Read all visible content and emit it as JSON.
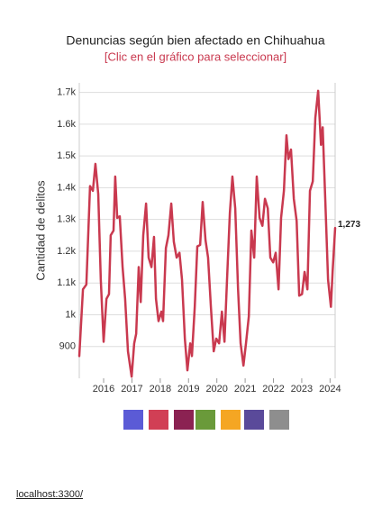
{
  "chart_data": {
    "type": "line",
    "title": "Denuncias según bien afectado en Chihuahua",
    "subtitle": "[Clic en el gráfico para seleccionar]",
    "y_label": "Cantidad de delitos",
    "x": [
      2015.14,
      2015.27,
      2015.39,
      2015.52,
      2015.62,
      2015.71,
      2015.81,
      2015.9,
      2016.0,
      2016.1,
      2016.19,
      2016.25,
      2016.35,
      2016.41,
      2016.48,
      2016.57,
      2016.67,
      2016.76,
      2016.86,
      2016.99,
      2017.08,
      2017.15,
      2017.24,
      2017.31,
      2017.4,
      2017.5,
      2017.59,
      2017.69,
      2017.78,
      2017.85,
      2017.94,
      2018.04,
      2018.1,
      2018.2,
      2018.29,
      2018.39,
      2018.48,
      2018.58,
      2018.68,
      2018.77,
      2018.87,
      2018.96,
      2019.06,
      2019.12,
      2019.22,
      2019.31,
      2019.41,
      2019.5,
      2019.6,
      2019.69,
      2019.79,
      2019.89,
      2019.98,
      2020.08,
      2020.18,
      2020.27,
      2020.36,
      2020.46,
      2020.55,
      2020.65,
      2020.75,
      2020.84,
      2020.94,
      2021.03,
      2021.13,
      2021.22,
      2021.32,
      2021.41,
      2021.51,
      2021.61,
      2021.7,
      2021.8,
      2021.89,
      2021.99,
      2022.08,
      2022.18,
      2022.27,
      2022.37,
      2022.46,
      2022.53,
      2022.62,
      2022.72,
      2022.82,
      2022.91,
      2023.01,
      2023.1,
      2023.2,
      2023.29,
      2023.39,
      2023.48,
      2023.58,
      2023.68,
      2023.74,
      2023.83,
      2023.93,
      2024.03,
      2024.09,
      2024.18
    ],
    "series": [
      {
        "name": "Cantidad de delitos",
        "color": "#c9394f",
        "values": [
          870,
          1080,
          1095,
          1405,
          1390,
          1475,
          1380,
          1110,
          915,
          1050,
          1065,
          1250,
          1265,
          1435,
          1305,
          1310,
          1150,
          1050,
          885,
          805,
          910,
          940,
          1150,
          1040,
          1250,
          1350,
          1180,
          1150,
          1245,
          1050,
          980,
          1010,
          980,
          1210,
          1250,
          1350,
          1230,
          1180,
          1195,
          1110,
          925,
          825,
          910,
          870,
          1025,
          1215,
          1220,
          1355,
          1235,
          1180,
          1025,
          885,
          925,
          910,
          1010,
          915,
          1110,
          1320,
          1435,
          1335,
          1080,
          910,
          840,
          910,
          995,
          1265,
          1180,
          1435,
          1305,
          1280,
          1365,
          1335,
          1180,
          1165,
          1195,
          1080,
          1305,
          1390,
          1565,
          1490,
          1520,
          1365,
          1295,
          1060,
          1065,
          1135,
          1080,
          1390,
          1420,
          1620,
          1705,
          1535,
          1590,
          1365,
          1110,
          1025,
          1135,
          1273
        ],
        "value_labels": [
          null,
          null,
          null,
          null,
          null,
          null,
          null,
          null,
          null,
          null,
          null,
          null,
          null,
          null,
          null,
          null,
          null,
          null,
          null,
          null,
          null,
          null,
          null,
          null,
          null,
          null,
          null,
          null,
          null,
          null,
          null,
          null,
          null,
          null,
          null,
          null,
          null,
          null,
          null,
          null,
          null,
          null,
          null,
          null,
          null,
          null,
          null,
          null,
          null,
          null,
          null,
          null,
          null,
          null,
          null,
          null,
          null,
          null,
          null,
          null,
          null,
          null,
          null,
          null,
          null,
          null,
          null,
          null,
          null,
          null,
          null,
          null,
          null,
          null,
          null,
          null,
          null,
          null,
          null,
          null,
          null,
          null,
          null,
          null,
          null,
          null,
          null,
          null,
          null,
          null,
          null,
          null,
          null,
          null,
          null,
          null,
          null,
          "1,273"
        ]
      }
    ],
    "xlim": [
      2015.14,
      2024.18
    ],
    "xticks": [
      2016,
      2017,
      2018,
      2019,
      2020,
      2021,
      2022,
      2023,
      2024
    ],
    "ylim": [
      800,
      1730
    ],
    "yticks": [
      900,
      {
        "value": 1000,
        "label": "1k"
      },
      {
        "value": 1100,
        "label": "1.1k"
      },
      {
        "value": 1200,
        "label": "1.2k"
      },
      {
        "value": 1300,
        "label": "1.3k"
      },
      {
        "value": 1400,
        "label": "1.4k"
      },
      {
        "value": 1500,
        "label": "1.5k"
      },
      {
        "value": 1600,
        "label": "1.6k"
      },
      {
        "value": 1700,
        "label": "1.7k"
      }
    ],
    "grid": true
  },
  "footer": "localhost:3300/"
}
